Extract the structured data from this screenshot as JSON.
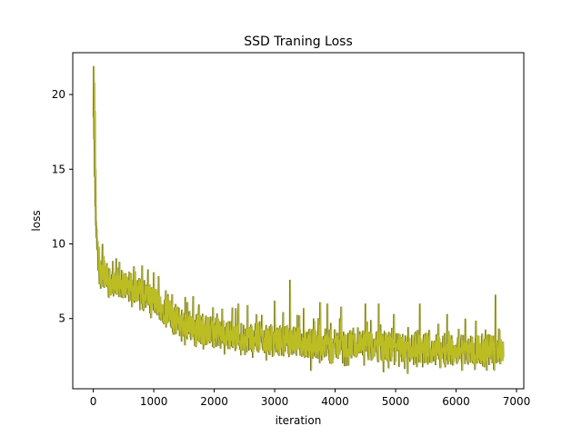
{
  "chart_data": {
    "type": "line",
    "title": "SSD Traning Loss",
    "xlabel": "iteration",
    "ylabel": "loss",
    "xlim": [
      -340,
      7120
    ],
    "ylim": [
      0.3,
      22.8
    ],
    "xticks": [
      0,
      1000,
      2000,
      3000,
      4000,
      5000,
      6000,
      7000
    ],
    "yticks": [
      5,
      10,
      15,
      20
    ],
    "grid": false,
    "legend": "none",
    "series": [
      {
        "color": "#bcbd22",
        "shadow_color": "#555555",
        "points": [
          [
            0,
            18.5
          ],
          [
            5,
            21.9
          ],
          [
            10,
            17.0
          ],
          [
            15,
            20.8
          ],
          [
            20,
            14.5
          ],
          [
            25,
            18.9
          ],
          [
            30,
            12.5
          ],
          [
            35,
            15.0
          ],
          [
            40,
            11.2
          ],
          [
            45,
            11.5
          ],
          [
            50,
            10.4
          ],
          [
            55,
            11.0
          ],
          [
            60,
            9.6
          ],
          [
            70,
            10.2
          ],
          [
            80,
            8.2
          ],
          [
            90,
            9.8
          ],
          [
            100,
            7.3
          ],
          [
            110,
            8.9
          ],
          [
            120,
            7.0
          ],
          [
            130,
            8.6
          ],
          [
            140,
            7.6
          ],
          [
            150,
            10.0
          ],
          [
            160,
            7.1
          ],
          [
            170,
            9.2
          ]
        ],
        "trend": [
          [
            170,
            6.7,
            8.9
          ],
          [
            300,
            6.5,
            8.6
          ],
          [
            500,
            6.3,
            8.3
          ],
          [
            700,
            6.0,
            7.9
          ],
          [
            900,
            5.6,
            7.5
          ],
          [
            1100,
            4.9,
            6.9
          ],
          [
            1300,
            4.0,
            6.1
          ],
          [
            1500,
            3.6,
            5.7
          ],
          [
            1800,
            3.2,
            5.3
          ],
          [
            2100,
            3.0,
            5.0
          ],
          [
            2500,
            2.8,
            4.8
          ],
          [
            3000,
            2.5,
            4.6
          ],
          [
            3500,
            2.3,
            4.4
          ],
          [
            4000,
            2.2,
            4.3
          ],
          [
            4500,
            2.1,
            4.2
          ],
          [
            5000,
            2.0,
            4.1
          ],
          [
            5500,
            2.0,
            4.1
          ],
          [
            6000,
            1.9,
            4.0
          ],
          [
            6500,
            1.9,
            4.0
          ],
          [
            6760,
            1.9,
            4.0
          ]
        ],
        "spikes": [
          [
            430,
            8.8
          ],
          [
            670,
            8.5
          ],
          [
            1000,
            8.1
          ],
          [
            1200,
            6.9
          ],
          [
            1650,
            6.5
          ],
          [
            2400,
            6.0
          ],
          [
            2550,
            5.9
          ],
          [
            3000,
            6.2
          ],
          [
            3250,
            7.6
          ],
          [
            3480,
            5.7
          ],
          [
            3750,
            6.1
          ],
          [
            3870,
            6.0
          ],
          [
            4100,
            5.8
          ],
          [
            4500,
            6.0
          ],
          [
            4720,
            6.0
          ],
          [
            4970,
            5.3
          ],
          [
            5400,
            6.0
          ],
          [
            5850,
            5.3
          ],
          [
            6150,
            5.0
          ],
          [
            6650,
            6.6
          ],
          [
            5200,
            1.3
          ],
          [
            3600,
            1.5
          ],
          [
            4800,
            1.4
          ],
          [
            6100,
            1.5
          ]
        ],
        "end": [
          6780,
          2.4
        ]
      }
    ]
  }
}
